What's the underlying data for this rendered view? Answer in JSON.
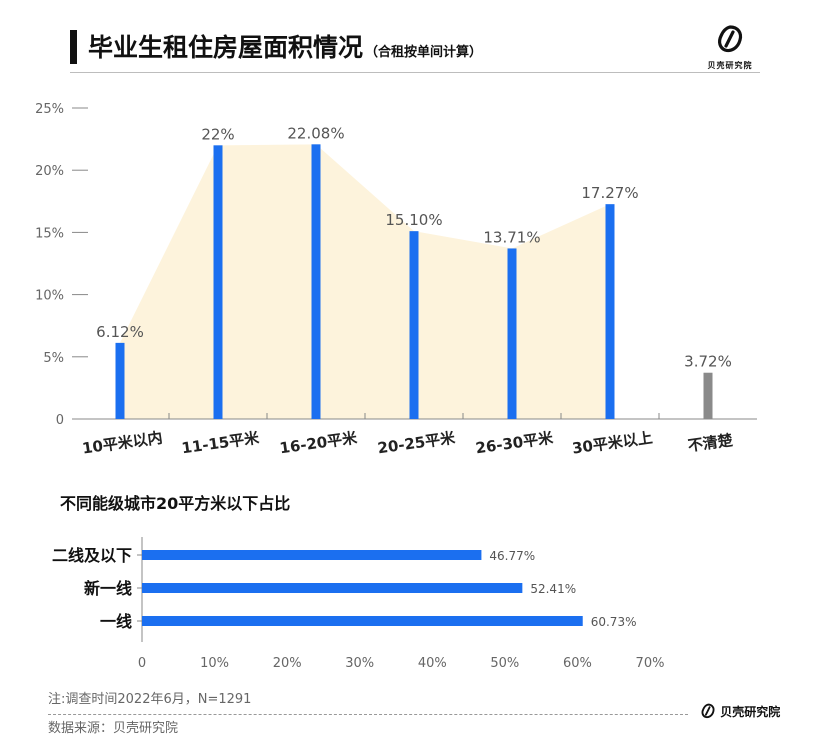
{
  "header": {
    "title": "毕业生租住房屋面积情况",
    "subtitle": "（合租按单间计算）",
    "brand": "贝壳研究院"
  },
  "chart_data": [
    {
      "type": "bar",
      "title": "毕业生租住房屋面积情况",
      "categories": [
        "10平米以内",
        "11-15平米",
        "16-20平米",
        "20-25平米",
        "26-30平米",
        "30平米以上",
        "不清楚"
      ],
      "values": [
        6.12,
        22,
        22.08,
        15.1,
        13.71,
        17.27,
        3.72
      ],
      "value_labels": [
        "6.12%",
        "22%",
        "22.08%",
        "15.10%",
        "13.71%",
        "17.27%",
        "3.72%"
      ],
      "y_ticks": [
        "0",
        "5%",
        "10%",
        "15%",
        "20%",
        "25%"
      ],
      "y_tick_values": [
        0,
        5,
        10,
        15,
        20,
        25
      ],
      "ylim": [
        0,
        25
      ],
      "colors": [
        "#1b6ff0",
        "#1b6ff0",
        "#1b6ff0",
        "#1b6ff0",
        "#1b6ff0",
        "#1b6ff0",
        "#8a8a8a"
      ],
      "area_fill": "#fdf3dc"
    },
    {
      "type": "bar",
      "orientation": "horizontal",
      "title": "不同能级城市20平方米以下占比",
      "categories": [
        "二线及以下",
        "新一线",
        "一线"
      ],
      "values": [
        46.77,
        52.41,
        60.73
      ],
      "value_labels": [
        "46.77%",
        "52.41%",
        "60.73%"
      ],
      "x_ticks": [
        "0",
        "10%",
        "20%",
        "30%",
        "40%",
        "50%",
        "60%",
        "70%"
      ],
      "x_tick_values": [
        0,
        10,
        20,
        30,
        40,
        50,
        60,
        70
      ],
      "xlim": [
        0,
        70
      ],
      "color": "#1b6ff0"
    }
  ],
  "footer": {
    "note": "注:调查时间2022年6月，N=1291",
    "source": "数据来源：贝壳研究院",
    "brand": "贝壳研究院"
  }
}
